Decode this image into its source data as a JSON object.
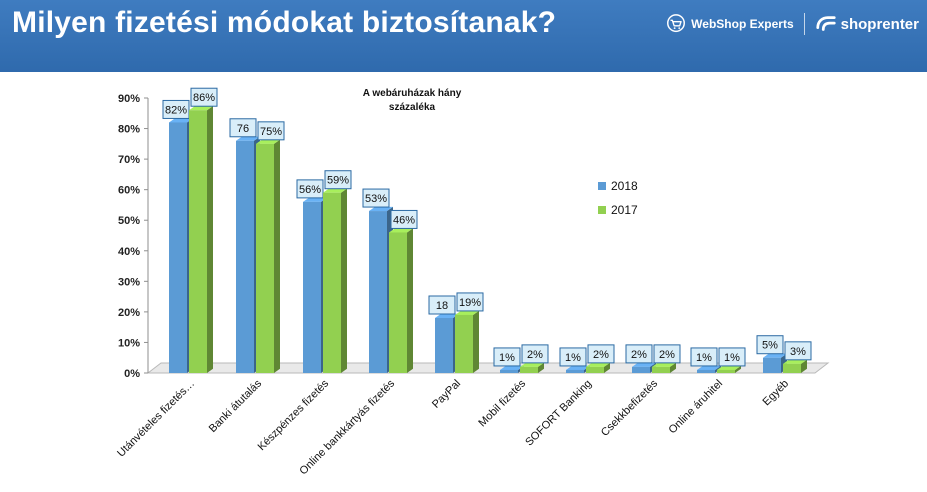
{
  "header": {
    "title": "Milyen fizetési módokat biztosítanak?",
    "logo_webshop": "WebShop Experts",
    "logo_shoprenter": "shoprenter",
    "background_color": "#3574b8"
  },
  "chart_data": {
    "type": "bar",
    "title": "A webáruházak hány százaléka",
    "categories": [
      "Utánvételes fizetés…",
      "Banki átutalás",
      "Készpénzes fizetés",
      "Online bankkártyás fizetés",
      "PayPal",
      "Mobil fizetés",
      "SOFORT Banking",
      "Csekkbefizetés",
      "Online áruhitel",
      "Egyéb"
    ],
    "series": [
      {
        "name": "2018",
        "values": [
          82,
          76,
          56,
          53,
          18,
          1,
          1,
          2,
          1,
          5
        ],
        "color": "#5b9bd5",
        "labels": [
          "82%",
          "76",
          "56%",
          "53%",
          "18",
          "1%",
          "1%",
          "2%",
          "1%",
          "5%"
        ]
      },
      {
        "name": "2017",
        "values": [
          86,
          75,
          59,
          46,
          19,
          2,
          2,
          2,
          1,
          3
        ],
        "color": "#92d050",
        "labels": [
          "86%",
          "75%",
          "59%",
          "46%",
          "19%",
          "2%",
          "2%",
          "2%",
          "1%",
          "3%"
        ]
      }
    ],
    "yticks": [
      "0%",
      "10%",
      "20%",
      "30%",
      "40%",
      "50%",
      "60%",
      "70%",
      "80%",
      "90%"
    ],
    "ylim": [
      0,
      90
    ],
    "legend_position": "right",
    "grid": false
  }
}
